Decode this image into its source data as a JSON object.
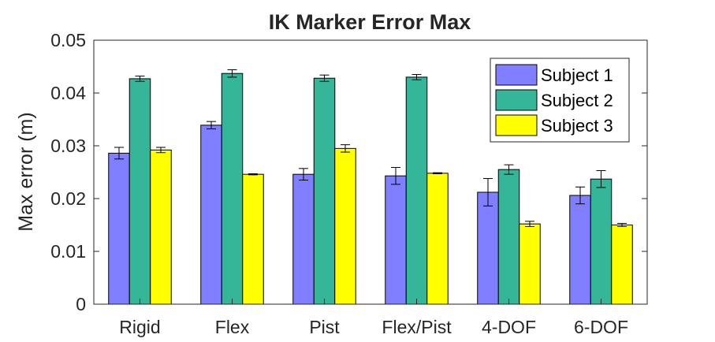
{
  "chart_data": {
    "type": "bar",
    "title": "IK Marker Error Max",
    "xlabel": "",
    "ylabel": "Max error (m)",
    "ylim": [
      0,
      0.05
    ],
    "yticks": [
      "0",
      "0.01",
      "0.02",
      "0.03",
      "0.04",
      "0.05"
    ],
    "grid": false,
    "legend_position": "top-right",
    "categories": [
      "Rigid",
      "Flex",
      "Pist",
      "Flex/Pist",
      "4-DOF",
      "6-DOF"
    ],
    "series": [
      {
        "name": "Subject 1",
        "color": "#7f7fff",
        "values": [
          0.0286,
          0.0339,
          0.0246,
          0.0243,
          0.0212,
          0.0206
        ],
        "errors": [
          0.0011,
          0.0007,
          0.0011,
          0.0016,
          0.0026,
          0.0016
        ]
      },
      {
        "name": "Subject 2",
        "color": "#35b699",
        "values": [
          0.0427,
          0.0437,
          0.0428,
          0.043,
          0.0255,
          0.0237
        ],
        "errors": [
          0.0005,
          0.0007,
          0.0006,
          0.0005,
          0.0009,
          0.0016
        ]
      },
      {
        "name": "Subject 3",
        "color": "#ffff00",
        "values": [
          0.0292,
          0.0246,
          0.0295,
          0.0248,
          0.0152,
          0.015
        ],
        "errors": [
          0.0005,
          0.0001,
          0.0007,
          0.0001,
          0.0005,
          0.0003
        ]
      }
    ]
  }
}
